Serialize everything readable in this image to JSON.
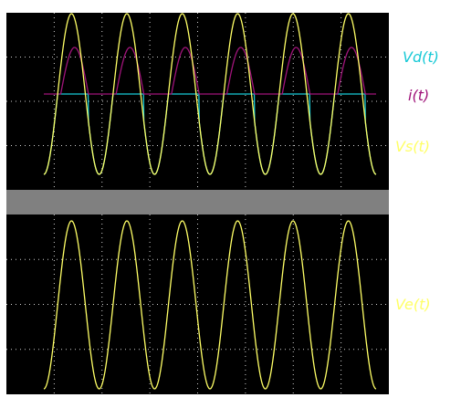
{
  "chart_data": [
    {
      "type": "line",
      "panel": "upper",
      "grid": true,
      "xlim": [
        0,
        1
      ],
      "ylim": [
        -1.1,
        1.1
      ],
      "cycles_shown": 6,
      "series": [
        {
          "name": "Vd(t)",
          "color": "#17c9d6",
          "waveform": "sine-clamped-nonnegative-to-zero",
          "amplitude": 1.0,
          "cycles": 6,
          "phase_cycles": 0.08
        },
        {
          "name": "i(t)",
          "color": "#a0147a",
          "waveform": "half-wave-rectified-sine",
          "amplitude": 0.58,
          "offset": 0.0,
          "cycles": 6,
          "phase_cycles": 0.08
        },
        {
          "name": "Vs(t)",
          "color": "#ffff66",
          "waveform": "sine",
          "amplitude": 1.0,
          "cycles": 6,
          "phase_cycles": 0.08
        }
      ]
    },
    {
      "type": "line",
      "panel": "lower",
      "grid": true,
      "xlim": [
        0,
        1
      ],
      "ylim": [
        -1.1,
        1.1
      ],
      "cycles_shown": 6,
      "series": [
        {
          "name": "Ve(t)",
          "color": "#ffff66",
          "waveform": "sine",
          "amplitude": 1.0,
          "cycles": 6,
          "phase_cycles": 0.08
        }
      ]
    }
  ],
  "colors": {
    "screen_background": "#000000",
    "grid": "#cfcfcf",
    "separator": "#808080",
    "page_background": "#ffffff"
  }
}
